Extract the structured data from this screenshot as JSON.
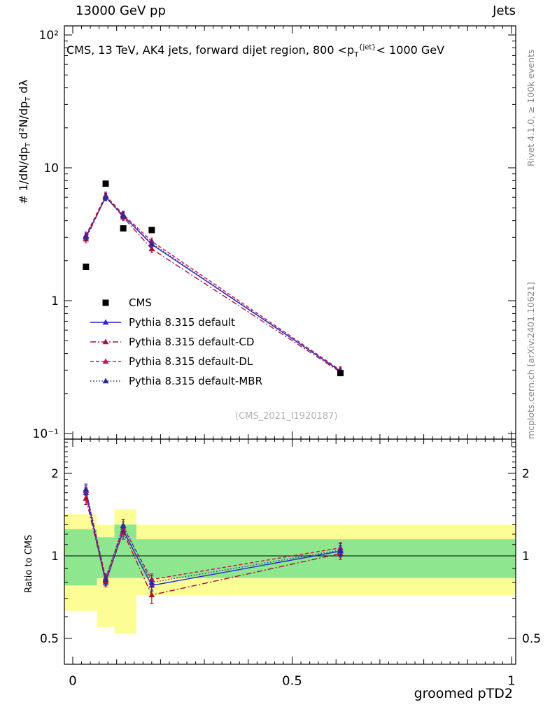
{
  "header": {
    "left": "13000 GeV pp",
    "right": "Jets"
  },
  "title_parts": {
    "p1": "CMS, 13 TeV, AK4 jets, forward dijet region, 800 <p",
    "sub1": "T",
    "sup1": "{jet}",
    "p2": "< 1000 GeV"
  },
  "labels": {
    "ylabel_p1": "# 1/dN/dp",
    "ylabel_s1": "T",
    "ylabel_p2": " d²N/dp",
    "ylabel_s2": "T",
    "ylabel_p3": " dλ",
    "ratio_ylabel": "Ratio to CMS",
    "watermark": "(CMS_2021_I1920187)"
  },
  "credits": {
    "top": "Rivet 4.1.0, ≥ 100k events",
    "bottom": "mcplots.cern.ch [arXiv:2401.10621]"
  },
  "chart_data": {
    "type": "line",
    "title": "CMS, 13 TeV, AK4 jets, forward dijet region, 800 <p_T^{jet}< 1000 GeV",
    "xlabel": "groomed pTD2",
    "ylabel": "# 1/dN/dp_T d²N/dp_T dλ",
    "ratio_ylabel": "Ratio to CMS",
    "x": [
      0.03,
      0.075,
      0.115,
      0.18,
      0.61
    ],
    "xlim": [
      -0.019,
      1.01
    ],
    "x_ticks": [
      {
        "v": 0,
        "label": "0"
      },
      {
        "v": 0.5,
        "label": "0.5"
      },
      {
        "v": 1,
        "label": "1"
      }
    ],
    "main_panel": {
      "yscale": "log",
      "ylim": [
        0.0908,
        117
      ],
      "yticks": [
        {
          "v": 100,
          "label": "10²"
        },
        {
          "v": 10,
          "label": "10"
        },
        {
          "v": 1,
          "label": "1"
        },
        {
          "v": 0.1,
          "label": "10⁻¹"
        }
      ]
    },
    "ratio_panel": {
      "yscale": "log",
      "ylim": [
        0.402,
        2.67
      ],
      "yticks": [
        {
          "v": 2,
          "label": "2"
        },
        {
          "v": 1,
          "label": "1"
        },
        {
          "v": 0.5,
          "label": "0.5"
        }
      ],
      "ref_line": 1.0,
      "bands": {
        "yellow": {
          "color": "#fdfd96",
          "segments": [
            {
              "x1": -0.019,
              "x2": 0.055,
              "lo": 0.63,
              "hi": 1.42
            },
            {
              "x1": 0.055,
              "x2": 0.095,
              "lo": 0.55,
              "hi": 1.3
            },
            {
              "x1": 0.095,
              "x2": 0.145,
              "lo": 0.52,
              "hi": 1.48
            },
            {
              "x1": 0.145,
              "x2": 1.01,
              "lo": 0.72,
              "hi": 1.3
            }
          ]
        },
        "green": {
          "color": "#8ee78e",
          "segments": [
            {
              "x1": -0.019,
              "x2": 0.055,
              "lo": 0.78,
              "hi": 1.25
            },
            {
              "x1": 0.055,
              "x2": 0.095,
              "lo": 0.83,
              "hi": 1.17
            },
            {
              "x1": 0.095,
              "x2": 0.145,
              "lo": 0.83,
              "hi": 1.3
            },
            {
              "x1": 0.145,
              "x2": 1.01,
              "lo": 0.83,
              "hi": 1.15
            }
          ]
        }
      }
    },
    "cms": {
      "label": "CMS",
      "color": "#000000",
      "marker": "square",
      "values": [
        1.8,
        7.6,
        3.5,
        3.4,
        0.285
      ]
    },
    "series": [
      {
        "name": "Pythia 8.315 default",
        "color": "#2727cc",
        "dash": "",
        "marker": "triangle",
        "values": [
          3.0,
          6.0,
          4.35,
          2.65,
          0.295
        ],
        "ratio": [
          1.7,
          0.8,
          1.24,
          0.78,
          1.04
        ],
        "ratio_err": [
          0.07,
          0.03,
          0.06,
          0.04,
          0.05
        ]
      },
      {
        "name": "Pythia 8.315 default-CD",
        "color": "#aa1133",
        "dash": "8 3 2 3",
        "marker": "triangle",
        "values": [
          2.9,
          6.1,
          4.25,
          2.45,
          0.29
        ],
        "ratio": [
          1.62,
          0.81,
          1.22,
          0.72,
          1.02
        ],
        "ratio_err": [
          0.08,
          0.04,
          0.07,
          0.05,
          0.05
        ]
      },
      {
        "name": "Pythia 8.315 default-DL",
        "color": "#cc1155",
        "dash": "5 3",
        "marker": "triangle",
        "values": [
          3.1,
          6.2,
          4.45,
          2.8,
          0.3
        ],
        "ratio": [
          1.73,
          0.83,
          1.27,
          0.82,
          1.07
        ],
        "ratio_err": [
          0.07,
          0.03,
          0.06,
          0.04,
          0.05
        ]
      },
      {
        "name": "Pythia 8.315 default-MBR",
        "color": "#2a2a99",
        "dash": "1.5 2.6",
        "marker": "triangle",
        "values": [
          3.05,
          6.05,
          4.4,
          2.7,
          0.295
        ],
        "ratio": [
          1.75,
          0.82,
          1.29,
          0.8,
          1.05
        ],
        "ratio_err": [
          0.08,
          0.04,
          0.07,
          0.05,
          0.06
        ]
      }
    ]
  }
}
